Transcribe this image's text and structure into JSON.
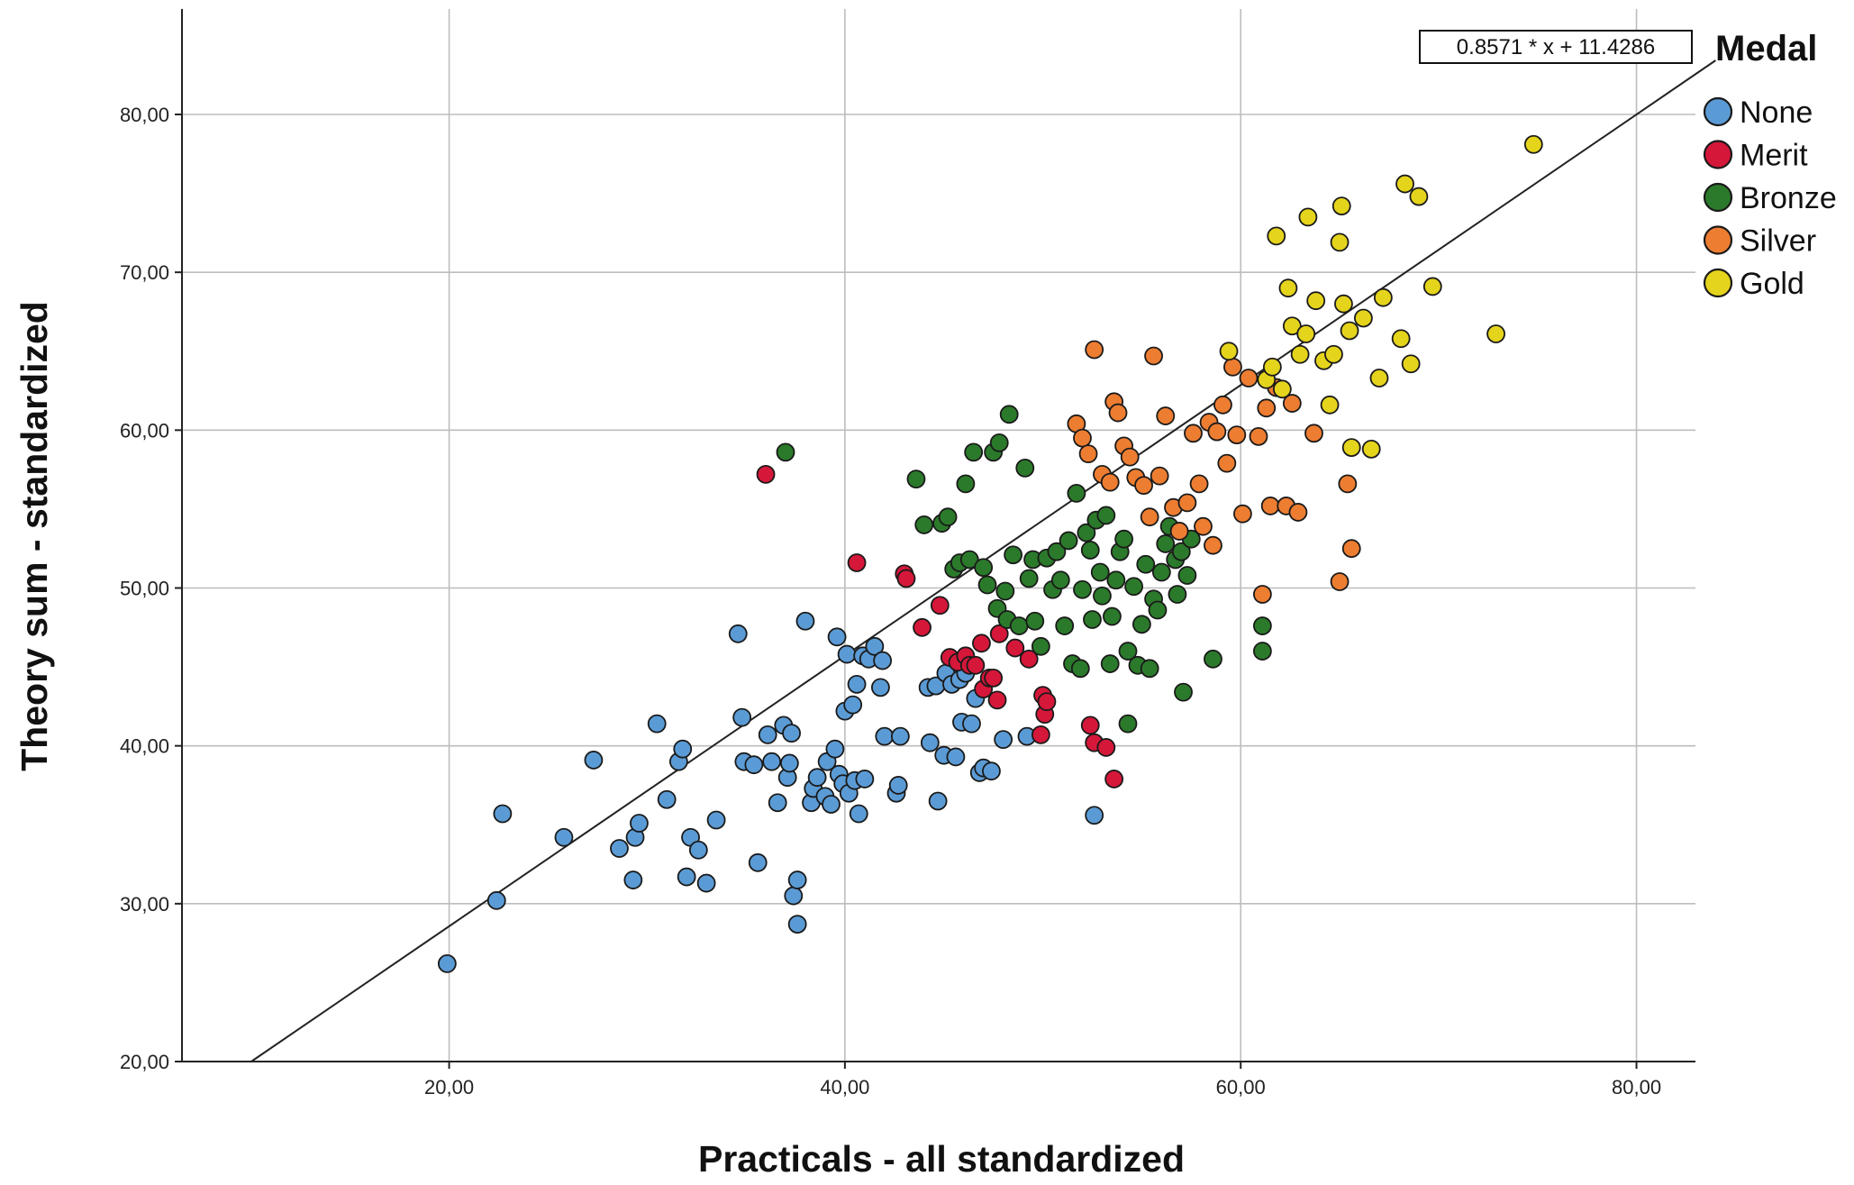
{
  "chart_data": {
    "type": "scatter",
    "xlabel": "Practicals - all standardized",
    "ylabel": "Theory sum - standardized",
    "xlim": [
      6.5,
      84
    ],
    "ylim": [
      20,
      86
    ],
    "x_ticks": [
      {
        "value": 20,
        "label": "20,00"
      },
      {
        "value": 40,
        "label": "40,00"
      },
      {
        "value": 60,
        "label": "60,00"
      },
      {
        "value": 80,
        "label": "80,00"
      }
    ],
    "y_ticks": [
      {
        "value": 20,
        "label": "20,00"
      },
      {
        "value": 30,
        "label": "30,00"
      },
      {
        "value": 40,
        "label": "40,00"
      },
      {
        "value": 50,
        "label": "50,00"
      },
      {
        "value": 60,
        "label": "60,00"
      },
      {
        "value": 70,
        "label": "70,00"
      },
      {
        "value": 80,
        "label": "80,00"
      }
    ],
    "grid": true,
    "legend": {
      "title": "Medal",
      "placement": "right"
    },
    "fit_line": {
      "label": "0.8571 * x + 11.4286",
      "slope": 0.8571,
      "intercept": 11.4286
    },
    "series": [
      {
        "name": "None",
        "color": "#5b9bd5",
        "points": [
          [
            19.9,
            26.2
          ],
          [
            22.4,
            30.2
          ],
          [
            22.7,
            35.7
          ],
          [
            25.8,
            34.2
          ],
          [
            27.3,
            39.1
          ],
          [
            28.6,
            33.5
          ],
          [
            29.3,
            31.5
          ],
          [
            29.4,
            34.2
          ],
          [
            29.6,
            35.1
          ],
          [
            30.5,
            41.4
          ],
          [
            31.0,
            36.6
          ],
          [
            31.6,
            39.0
          ],
          [
            31.8,
            39.8
          ],
          [
            32.0,
            31.7
          ],
          [
            32.2,
            34.2
          ],
          [
            32.6,
            33.4
          ],
          [
            33.0,
            31.3
          ],
          [
            33.5,
            35.3
          ],
          [
            34.6,
            47.1
          ],
          [
            34.8,
            41.8
          ],
          [
            34.9,
            39.0
          ],
          [
            35.4,
            38.8
          ],
          [
            35.6,
            32.6
          ],
          [
            36.1,
            40.7
          ],
          [
            36.3,
            39.0
          ],
          [
            36.6,
            36.4
          ],
          [
            36.9,
            41.3
          ],
          [
            37.1,
            38.0
          ],
          [
            37.2,
            38.9
          ],
          [
            37.3,
            40.8
          ],
          [
            37.4,
            30.5
          ],
          [
            37.6,
            31.5
          ],
          [
            37.6,
            28.7
          ],
          [
            38.0,
            47.9
          ],
          [
            38.3,
            36.4
          ],
          [
            38.4,
            37.3
          ],
          [
            38.6,
            38.0
          ],
          [
            39.0,
            36.8
          ],
          [
            39.1,
            39.0
          ],
          [
            39.3,
            36.3
          ],
          [
            39.5,
            39.8
          ],
          [
            39.6,
            46.9
          ],
          [
            39.7,
            38.2
          ],
          [
            39.9,
            37.6
          ],
          [
            40.0,
            42.2
          ],
          [
            40.1,
            45.8
          ],
          [
            40.2,
            37.0
          ],
          [
            40.4,
            42.6
          ],
          [
            40.5,
            37.8
          ],
          [
            40.6,
            43.9
          ],
          [
            40.7,
            35.7
          ],
          [
            40.9,
            45.7
          ],
          [
            41.0,
            37.9
          ],
          [
            41.2,
            45.5
          ],
          [
            41.5,
            46.3
          ],
          [
            41.8,
            43.7
          ],
          [
            41.9,
            45.4
          ],
          [
            42.0,
            40.6
          ],
          [
            42.6,
            37.0
          ],
          [
            42.7,
            37.5
          ],
          [
            42.8,
            40.6
          ],
          [
            44.2,
            43.7
          ],
          [
            44.3,
            40.2
          ],
          [
            44.6,
            43.8
          ],
          [
            44.7,
            36.5
          ],
          [
            45.0,
            39.4
          ],
          [
            45.1,
            44.6
          ],
          [
            45.4,
            43.9
          ],
          [
            45.6,
            39.3
          ],
          [
            45.8,
            44.2
          ],
          [
            45.9,
            41.5
          ],
          [
            46.1,
            44.6
          ],
          [
            46.4,
            41.4
          ],
          [
            46.6,
            43.0
          ],
          [
            46.8,
            38.3
          ],
          [
            47.0,
            38.6
          ],
          [
            47.4,
            38.4
          ],
          [
            48.0,
            40.4
          ],
          [
            49.2,
            40.6
          ],
          [
            52.6,
            35.6
          ]
        ]
      },
      {
        "name": "Merit",
        "color": "#d5173a",
        "points": [
          [
            36.0,
            57.2
          ],
          [
            40.6,
            51.6
          ],
          [
            43.0,
            50.9
          ],
          [
            43.1,
            50.6
          ],
          [
            43.9,
            47.5
          ],
          [
            44.8,
            48.9
          ],
          [
            45.3,
            45.6
          ],
          [
            45.7,
            45.3
          ],
          [
            46.1,
            45.7
          ],
          [
            46.3,
            45.1
          ],
          [
            46.6,
            45.1
          ],
          [
            46.9,
            46.5
          ],
          [
            47.0,
            43.6
          ],
          [
            47.3,
            44.3
          ],
          [
            47.5,
            44.3
          ],
          [
            47.7,
            42.9
          ],
          [
            47.8,
            47.1
          ],
          [
            48.6,
            46.2
          ],
          [
            49.3,
            45.5
          ],
          [
            49.9,
            40.7
          ],
          [
            50.0,
            43.2
          ],
          [
            50.1,
            42.0
          ],
          [
            50.2,
            42.8
          ],
          [
            52.4,
            41.3
          ],
          [
            52.6,
            40.2
          ],
          [
            53.2,
            39.9
          ],
          [
            53.6,
            37.9
          ]
        ]
      },
      {
        "name": "Bronze",
        "color": "#2b7a2b",
        "points": [
          [
            37.0,
            58.6
          ],
          [
            43.6,
            56.9
          ],
          [
            44.0,
            54.0
          ],
          [
            44.9,
            54.1
          ],
          [
            45.2,
            54.5
          ],
          [
            45.5,
            51.2
          ],
          [
            45.8,
            51.6
          ],
          [
            46.1,
            56.6
          ],
          [
            46.3,
            51.8
          ],
          [
            46.5,
            58.6
          ],
          [
            47.0,
            51.3
          ],
          [
            47.2,
            50.2
          ],
          [
            47.5,
            58.6
          ],
          [
            47.7,
            48.7
          ],
          [
            47.8,
            59.2
          ],
          [
            48.1,
            49.8
          ],
          [
            48.2,
            48.0
          ],
          [
            48.3,
            61.0
          ],
          [
            48.5,
            52.1
          ],
          [
            48.8,
            47.6
          ],
          [
            49.1,
            57.6
          ],
          [
            49.3,
            50.6
          ],
          [
            49.5,
            51.8
          ],
          [
            49.6,
            47.9
          ],
          [
            49.9,
            46.3
          ],
          [
            50.2,
            51.9
          ],
          [
            50.5,
            49.9
          ],
          [
            50.7,
            52.3
          ],
          [
            50.9,
            50.5
          ],
          [
            51.1,
            47.6
          ],
          [
            51.3,
            53.0
          ],
          [
            51.5,
            45.2
          ],
          [
            51.7,
            56.0
          ],
          [
            51.9,
            44.9
          ],
          [
            52.0,
            49.9
          ],
          [
            52.2,
            53.5
          ],
          [
            52.4,
            52.4
          ],
          [
            52.5,
            48.0
          ],
          [
            52.7,
            54.3
          ],
          [
            52.9,
            51.0
          ],
          [
            53.0,
            49.5
          ],
          [
            53.2,
            54.6
          ],
          [
            53.4,
            45.2
          ],
          [
            53.5,
            48.2
          ],
          [
            53.7,
            50.5
          ],
          [
            53.9,
            52.3
          ],
          [
            54.1,
            53.1
          ],
          [
            54.3,
            46.0
          ],
          [
            54.3,
            41.4
          ],
          [
            54.6,
            50.1
          ],
          [
            54.8,
            45.1
          ],
          [
            55.0,
            47.7
          ],
          [
            55.2,
            51.5
          ],
          [
            55.4,
            44.9
          ],
          [
            55.6,
            49.3
          ],
          [
            55.8,
            48.6
          ],
          [
            56.0,
            51.0
          ],
          [
            56.2,
            52.8
          ],
          [
            56.4,
            53.9
          ],
          [
            56.7,
            51.8
          ],
          [
            56.8,
            49.6
          ],
          [
            57.0,
            52.3
          ],
          [
            57.1,
            43.4
          ],
          [
            57.3,
            50.8
          ],
          [
            57.5,
            53.1
          ],
          [
            58.6,
            45.5
          ],
          [
            61.1,
            47.6
          ],
          [
            61.1,
            46.0
          ]
        ]
      },
      {
        "name": "Silver",
        "color": "#ed7d31",
        "points": [
          [
            51.7,
            60.4
          ],
          [
            52.0,
            59.5
          ],
          [
            52.3,
            58.5
          ],
          [
            52.6,
            65.1
          ],
          [
            53.0,
            57.2
          ],
          [
            53.4,
            56.7
          ],
          [
            53.6,
            61.8
          ],
          [
            53.8,
            61.1
          ],
          [
            54.1,
            59.0
          ],
          [
            54.4,
            58.3
          ],
          [
            54.7,
            57.0
          ],
          [
            55.1,
            56.5
          ],
          [
            55.4,
            54.5
          ],
          [
            55.6,
            64.7
          ],
          [
            55.9,
            57.1
          ],
          [
            56.2,
            60.9
          ],
          [
            56.6,
            55.1
          ],
          [
            56.9,
            53.6
          ],
          [
            57.3,
            55.4
          ],
          [
            57.6,
            59.8
          ],
          [
            57.9,
            56.6
          ],
          [
            58.1,
            53.9
          ],
          [
            58.4,
            60.5
          ],
          [
            58.6,
            52.7
          ],
          [
            58.8,
            59.9
          ],
          [
            59.1,
            61.6
          ],
          [
            59.3,
            57.9
          ],
          [
            59.6,
            64.0
          ],
          [
            59.8,
            59.7
          ],
          [
            60.1,
            54.7
          ],
          [
            60.4,
            63.3
          ],
          [
            60.9,
            59.6
          ],
          [
            61.1,
            49.6
          ],
          [
            61.3,
            61.4
          ],
          [
            61.5,
            55.2
          ],
          [
            61.8,
            62.7
          ],
          [
            62.3,
            55.2
          ],
          [
            62.6,
            61.7
          ],
          [
            62.9,
            54.8
          ],
          [
            63.7,
            59.8
          ],
          [
            65.0,
            50.4
          ],
          [
            65.4,
            56.6
          ],
          [
            65.6,
            52.5
          ]
        ]
      },
      {
        "name": "Gold",
        "color": "#e5d41c",
        "points": [
          [
            59.4,
            65.0
          ],
          [
            61.3,
            63.2
          ],
          [
            61.6,
            64.0
          ],
          [
            61.8,
            72.3
          ],
          [
            62.1,
            62.6
          ],
          [
            62.4,
            69.0
          ],
          [
            62.6,
            66.6
          ],
          [
            63.0,
            64.8
          ],
          [
            63.3,
            66.1
          ],
          [
            63.4,
            73.5
          ],
          [
            63.8,
            68.2
          ],
          [
            64.2,
            64.4
          ],
          [
            64.5,
            61.6
          ],
          [
            64.7,
            64.8
          ],
          [
            65.0,
            71.9
          ],
          [
            65.1,
            74.2
          ],
          [
            65.2,
            68.0
          ],
          [
            65.5,
            66.3
          ],
          [
            65.6,
            58.9
          ],
          [
            66.2,
            67.1
          ],
          [
            66.6,
            58.8
          ],
          [
            67.0,
            63.3
          ],
          [
            67.2,
            68.4
          ],
          [
            68.1,
            65.8
          ],
          [
            68.3,
            75.6
          ],
          [
            68.6,
            64.2
          ],
          [
            69.0,
            74.8
          ],
          [
            69.7,
            69.1
          ],
          [
            72.9,
            66.1
          ],
          [
            74.8,
            78.1
          ]
        ]
      }
    ]
  }
}
